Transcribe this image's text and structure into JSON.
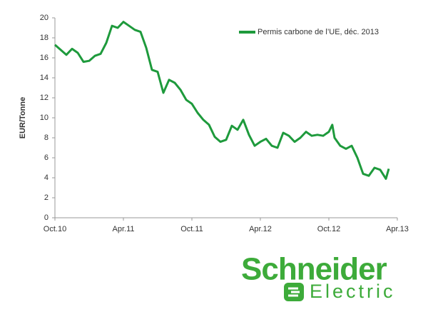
{
  "chart_data": {
    "type": "line",
    "y_label": "EUR/Tonne",
    "x": [
      0,
      0.5,
      1,
      1.5,
      2,
      2.5,
      3,
      3.5,
      4,
      4.5,
      5,
      5.5,
      6,
      6.5,
      7,
      7.5,
      8,
      8.5,
      9,
      9.5,
      10,
      10.5,
      11,
      11.5,
      12,
      12.5,
      13,
      13.5,
      14,
      14.5,
      15,
      15.5,
      16,
      16.5,
      17,
      17.5,
      18,
      18.5,
      19,
      19.5,
      20,
      20.5,
      21,
      21.5,
      22,
      22.5,
      23,
      23.5,
      24,
      24.3,
      24.5,
      25,
      25.5,
      26,
      26.5,
      27,
      27.5,
      28,
      28.5,
      29,
      29.25
    ],
    "series": [
      {
        "name": "Permis carbone de l’UE, déc. 2013",
        "color": "#1e9a3c",
        "values": [
          17.3,
          16.8,
          16.3,
          16.9,
          16.5,
          15.6,
          15.7,
          16.2,
          16.4,
          17.5,
          19.2,
          19.0,
          19.6,
          19.2,
          18.8,
          18.6,
          17.0,
          14.8,
          14.6,
          12.5,
          13.8,
          13.5,
          12.8,
          11.8,
          11.4,
          10.5,
          9.8,
          9.3,
          8.1,
          7.6,
          7.8,
          9.2,
          8.8,
          9.8,
          8.3,
          7.2,
          7.6,
          7.9,
          7.2,
          7.0,
          8.5,
          8.2,
          7.6,
          8.0,
          8.6,
          8.2,
          8.3,
          8.2,
          8.6,
          9.3,
          8.0,
          7.2,
          6.9,
          7.2,
          6.0,
          4.4,
          4.2,
          5.0,
          4.8,
          3.9,
          4.9
        ]
      }
    ],
    "xlim": [
      0,
      30
    ],
    "xticks": [
      {
        "value": 0,
        "label": "Oct.10"
      },
      {
        "value": 6,
        "label": "Apr.11"
      },
      {
        "value": 12,
        "label": "Oct.11"
      },
      {
        "value": 18,
        "label": "Apr.12"
      },
      {
        "value": 24,
        "label": "Oct.12"
      },
      {
        "value": 30,
        "label": "Apr.13"
      }
    ],
    "ylim": [
      0,
      20
    ],
    "yticks": [
      0,
      2,
      4,
      6,
      8,
      10,
      12,
      14,
      16,
      18,
      20
    ],
    "legend": "top-right"
  },
  "logo": {
    "name": "Schneider",
    "subname": "Electric"
  }
}
